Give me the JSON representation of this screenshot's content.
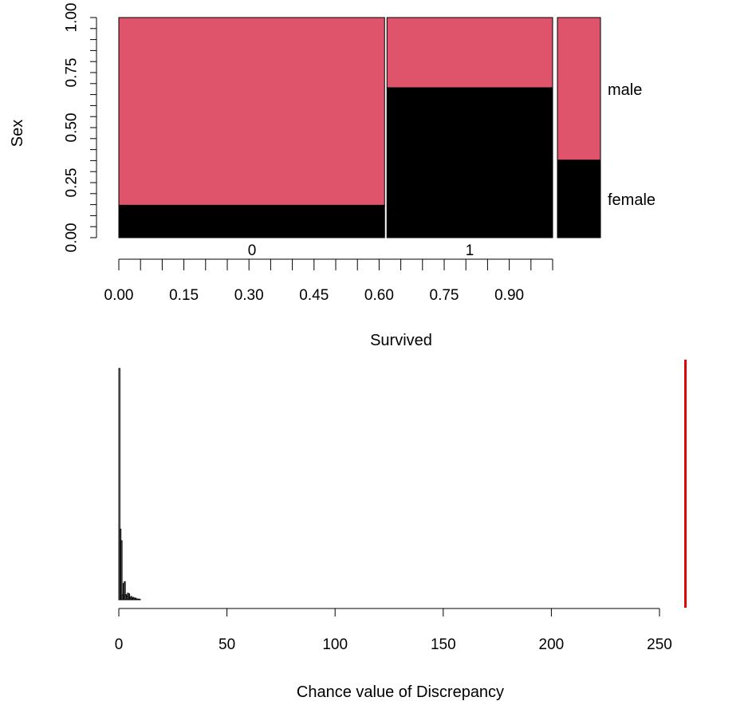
{
  "chart_data": [
    {
      "type": "mosaic",
      "xlabel": "Survived",
      "ylabel": "Sex",
      "colors": {
        "male": "#DF536B",
        "female": "#000000"
      },
      "x_categories": [
        "0",
        "1"
      ],
      "x_proportions": [
        0.616,
        0.384
      ],
      "y_categories": [
        "female",
        "male"
      ],
      "female_share": [
        0.147,
        0.681
      ],
      "marginal": {
        "female_share": 0.352
      },
      "x_ticks": [
        "0.00",
        "0.15",
        "0.30",
        "0.45",
        "0.60",
        "0.75",
        "0.90"
      ],
      "x_tick_values": [
        0.0,
        0.15,
        0.3,
        0.45,
        0.6,
        0.75,
        0.9
      ],
      "y_ticks": [
        "0.00",
        "0.25",
        "0.50",
        "0.75",
        "1.00"
      ],
      "y_tick_values": [
        0.0,
        0.25,
        0.5,
        0.75,
        1.0
      ],
      "xlim": [
        0,
        1
      ],
      "ylim": [
        0,
        1
      ]
    },
    {
      "type": "histogram",
      "xlabel": "Chance value of Discrepancy",
      "xlim": [
        0,
        250
      ],
      "x_ticks": [
        "0",
        "50",
        "100",
        "150",
        "200",
        "250"
      ],
      "x_tick_values": [
        0,
        50,
        100,
        150,
        200,
        250
      ],
      "bin_width": 0.5,
      "bin_starts": [
        0,
        0.5,
        1,
        1.5,
        2,
        2.5,
        3,
        3.5,
        4,
        4.5,
        5,
        5.5,
        6,
        6.5,
        7,
        7.5,
        8,
        8.5,
        9,
        9.5
      ],
      "counts": [
        1000,
        305,
        255,
        20,
        70,
        78,
        22,
        15,
        28,
        25,
        8,
        14,
        6,
        10,
        4,
        7,
        3,
        2,
        3,
        1
      ],
      "observed_value": 262,
      "observed_color": "#DF0000"
    }
  ]
}
